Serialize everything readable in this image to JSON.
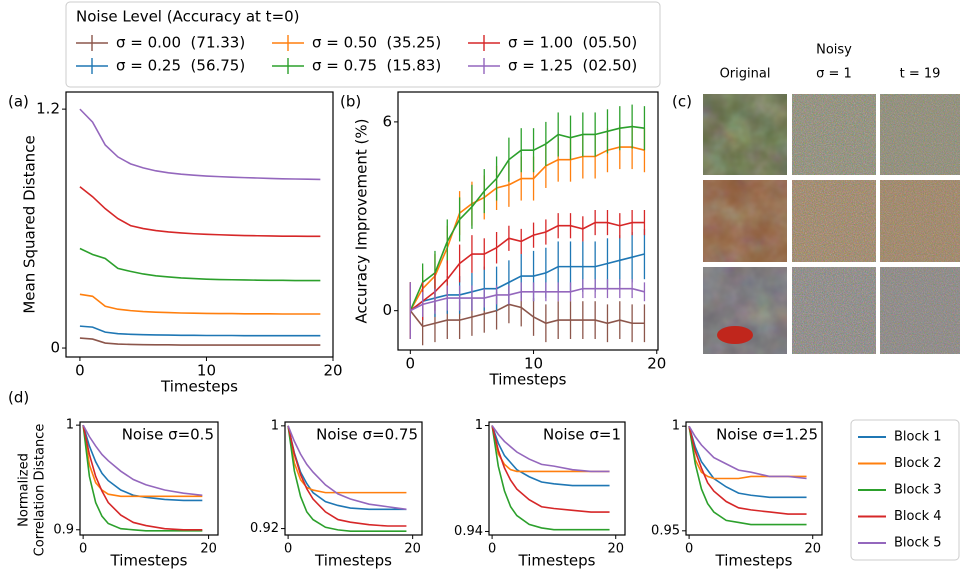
{
  "chart_data": [
    {
      "type": "line",
      "panel_label": "(a)",
      "ylabel": "Mean Squared Distance",
      "xlabel": "Timesteps",
      "legend_title": "Noise Level (Accuracy at t=0)",
      "x": [
        0,
        1,
        2,
        3,
        4,
        5,
        6,
        7,
        8,
        9,
        10,
        11,
        12,
        13,
        14,
        15,
        16,
        17,
        18,
        19
      ],
      "xlim": [
        -1.1,
        20
      ],
      "ylim": [
        -0.045,
        1.286
      ],
      "xticks": [
        0,
        10,
        20
      ],
      "yticks": [
        0,
        1.2
      ],
      "series": [
        {
          "name": "σ = 0.00  (71.33)",
          "color": "#8c564b",
          "values": [
            0.05,
            0.045,
            0.025,
            0.02,
            0.018,
            0.017,
            0.016,
            0.016,
            0.015,
            0.015,
            0.015,
            0.015,
            0.015,
            0.015,
            0.015,
            0.015,
            0.015,
            0.015,
            0.015,
            0.015
          ]
        },
        {
          "name": "σ = 0.25  (56.75)",
          "color": "#1f77b4",
          "values": [
            0.11,
            0.105,
            0.08,
            0.072,
            0.069,
            0.067,
            0.066,
            0.065,
            0.064,
            0.064,
            0.063,
            0.063,
            0.063,
            0.062,
            0.062,
            0.062,
            0.062,
            0.062,
            0.062,
            0.062
          ]
        },
        {
          "name": "σ = 0.50  (35.25)",
          "color": "#ff7f0e",
          "values": [
            0.27,
            0.26,
            0.21,
            0.195,
            0.188,
            0.183,
            0.18,
            0.178,
            0.176,
            0.175,
            0.174,
            0.173,
            0.173,
            0.172,
            0.172,
            0.172,
            0.171,
            0.171,
            0.171,
            0.171
          ]
        },
        {
          "name": "σ = 0.75  (15.83)",
          "color": "#2ca02c",
          "values": [
            0.5,
            0.47,
            0.45,
            0.4,
            0.385,
            0.372,
            0.363,
            0.357,
            0.352,
            0.349,
            0.346,
            0.344,
            0.343,
            0.342,
            0.341,
            0.34,
            0.34,
            0.339,
            0.339,
            0.339
          ]
        },
        {
          "name": "σ = 1.00  (05.50)",
          "color": "#d62728",
          "values": [
            0.81,
            0.76,
            0.7,
            0.65,
            0.615,
            0.6,
            0.59,
            0.583,
            0.578,
            0.574,
            0.571,
            0.569,
            0.567,
            0.565,
            0.564,
            0.563,
            0.562,
            0.562,
            0.561,
            0.561
          ]
        },
        {
          "name": "σ = 1.25  (02.50)",
          "color": "#9467bd",
          "values": [
            1.2,
            1.135,
            1.02,
            0.96,
            0.925,
            0.905,
            0.89,
            0.88,
            0.873,
            0.868,
            0.864,
            0.861,
            0.858,
            0.856,
            0.854,
            0.852,
            0.85,
            0.849,
            0.848,
            0.847
          ]
        }
      ]
    },
    {
      "type": "line",
      "panel_label": "(b)",
      "ylabel": "Accuracy Improvement (%)",
      "xlabel": "Timesteps",
      "x": [
        0,
        1,
        2,
        3,
        4,
        5,
        6,
        7,
        8,
        9,
        10,
        11,
        12,
        13,
        14,
        15,
        16,
        17,
        18,
        19
      ],
      "xlim": [
        -1,
        20.1
      ],
      "ylim": [
        -1.25,
        6.95
      ],
      "xticks": [
        0,
        10,
        20
      ],
      "yticks": [
        0,
        6
      ],
      "series": [
        {
          "color": "#8c564b",
          "values": [
            0,
            -0.5,
            -0.4,
            -0.3,
            -0.3,
            -0.2,
            -0.1,
            0,
            0.2,
            0.1,
            -0.2,
            -0.4,
            -0.3,
            -0.3,
            -0.3,
            -0.3,
            -0.4,
            -0.3,
            -0.4,
            -0.4
          ],
          "errors": [
            0.9,
            0.6,
            0.6,
            0.6,
            0.6,
            0.6,
            0.6,
            0.6,
            0.6,
            0.6,
            0.6,
            0.6,
            0.6,
            0.6,
            0.6,
            0.6,
            0.6,
            0.6,
            0.6,
            0.6
          ]
        },
        {
          "color": "#1f77b4",
          "values": [
            0,
            0.3,
            0.4,
            0.5,
            0.5,
            0.6,
            0.7,
            0.7,
            0.9,
            1.1,
            1.1,
            1.2,
            1.4,
            1.4,
            1.4,
            1.4,
            1.5,
            1.6,
            1.7,
            1.8
          ],
          "errors": [
            0.9,
            0.6,
            0.6,
            0.6,
            0.6,
            0.6,
            0.7,
            0.7,
            0.7,
            0.7,
            0.8,
            0.8,
            0.8,
            0.8,
            0.8,
            0.8,
            0.8,
            0.8,
            0.8,
            0.8
          ]
        },
        {
          "color": "#ff7f0e",
          "values": [
            0,
            0.7,
            1.1,
            2.0,
            3.1,
            3.4,
            3.6,
            3.9,
            4.0,
            4.2,
            4.2,
            4.6,
            4.8,
            4.8,
            4.9,
            4.9,
            5.1,
            5.2,
            5.2,
            5.1
          ],
          "errors": [
            0.9,
            0.6,
            0.7,
            0.7,
            0.7,
            0.7,
            0.7,
            0.7,
            0.7,
            0.7,
            0.7,
            0.7,
            0.7,
            0.7,
            0.7,
            0.7,
            0.7,
            0.7,
            0.7,
            0.7
          ]
        },
        {
          "color": "#2ca02c",
          "values": [
            0,
            0.9,
            1.2,
            2.2,
            2.9,
            3.3,
            3.8,
            4.2,
            4.8,
            5.1,
            5.1,
            5.3,
            5.6,
            5.5,
            5.6,
            5.6,
            5.7,
            5.8,
            5.85,
            5.8
          ],
          "errors": [
            0.9,
            0.6,
            0.7,
            0.7,
            0.7,
            0.7,
            0.7,
            0.7,
            0.7,
            0.7,
            0.7,
            0.7,
            0.7,
            0.7,
            0.7,
            0.7,
            0.7,
            0.7,
            0.7,
            0.7
          ]
        },
        {
          "color": "#d62728",
          "values": [
            0,
            0.3,
            0.6,
            1.0,
            1.5,
            1.8,
            1.8,
            2.0,
            2.3,
            2.2,
            2.4,
            2.5,
            2.7,
            2.7,
            2.6,
            2.8,
            2.8,
            2.7,
            2.8,
            2.8
          ],
          "errors": [
            0.9,
            0.6,
            0.6,
            0.6,
            0.6,
            0.6,
            0.5,
            0.5,
            0.4,
            0.4,
            0.4,
            0.4,
            0.4,
            0.4,
            0.4,
            0.4,
            0.4,
            0.4,
            0.4,
            0.4
          ]
        },
        {
          "color": "#9467bd",
          "values": [
            0,
            0.2,
            0.3,
            0.4,
            0.4,
            0.4,
            0.4,
            0.5,
            0.5,
            0.6,
            0.6,
            0.6,
            0.6,
            0.6,
            0.7,
            0.7,
            0.7,
            0.7,
            0.7,
            0.6
          ],
          "errors": [
            0.9,
            0.4,
            0.4,
            0.4,
            0.4,
            0.4,
            0.3,
            0.3,
            0.3,
            0.3,
            0.3,
            0.3,
            0.3,
            0.3,
            0.3,
            0.3,
            0.3,
            0.3,
            0.3,
            0.3
          ]
        }
      ]
    },
    {
      "type": "line",
      "title": "Noise σ=0.5",
      "xlabel": "Timesteps",
      "x": [
        0,
        1,
        2,
        3,
        4,
        6,
        8,
        10,
        13,
        16,
        19
      ],
      "xlim": [
        -0.5,
        21.5
      ],
      "ylim": [
        0.895,
        1.003
      ],
      "xticks": [
        0,
        20
      ],
      "yticks": [
        0.9,
        1
      ],
      "series": [
        {
          "name": "Block 1",
          "color": "#1f77b4",
          "values": [
            1,
            0.98,
            0.965,
            0.954,
            0.947,
            0.938,
            0.933,
            0.931,
            0.929,
            0.928,
            0.928
          ]
        },
        {
          "name": "Block 2",
          "color": "#ff7f0e",
          "values": [
            1,
            0.962,
            0.945,
            0.938,
            0.934,
            0.932,
            0.932,
            0.932,
            0.932,
            0.932,
            0.932
          ]
        },
        {
          "name": "Block 3",
          "color": "#2ca02c",
          "values": [
            1,
            0.951,
            0.926,
            0.913,
            0.906,
            0.901,
            0.9,
            0.899,
            0.899,
            0.899,
            0.899
          ]
        },
        {
          "name": "Block 4",
          "color": "#d62728",
          "values": [
            1,
            0.972,
            0.951,
            0.937,
            0.926,
            0.914,
            0.907,
            0.904,
            0.901,
            0.9,
            0.9
          ]
        },
        {
          "name": "Block 5",
          "color": "#9467bd",
          "values": [
            1,
            0.989,
            0.98,
            0.972,
            0.966,
            0.956,
            0.948,
            0.943,
            0.938,
            0.935,
            0.933
          ]
        }
      ]
    },
    {
      "type": "line",
      "title": "Noise σ=0.75",
      "xlabel": "Timesteps",
      "x": [
        0,
        1,
        2,
        3,
        4,
        6,
        8,
        10,
        13,
        16,
        19
      ],
      "xlim": [
        -0.5,
        21.5
      ],
      "ylim": [
        0.915,
        1.003
      ],
      "xticks": [
        0,
        20
      ],
      "yticks": [
        0.92,
        1
      ],
      "series": [
        {
          "color": "#1f77b4",
          "values": [
            1,
            0.979,
            0.964,
            0.955,
            0.948,
            0.941,
            0.938,
            0.936,
            0.935,
            0.935,
            0.935
          ]
        },
        {
          "color": "#ff7f0e",
          "values": [
            1,
            0.971,
            0.958,
            0.952,
            0.95,
            0.948,
            0.948,
            0.948,
            0.948,
            0.948,
            0.948
          ]
        },
        {
          "color": "#2ca02c",
          "values": [
            1,
            0.965,
            0.945,
            0.933,
            0.927,
            0.921,
            0.919,
            0.918,
            0.918,
            0.918,
            0.918
          ]
        },
        {
          "color": "#d62728",
          "values": [
            1,
            0.978,
            0.962,
            0.951,
            0.943,
            0.933,
            0.927,
            0.925,
            0.923,
            0.922,
            0.922
          ]
        },
        {
          "color": "#9467bd",
          "values": [
            1,
            0.988,
            0.978,
            0.97,
            0.964,
            0.954,
            0.947,
            0.943,
            0.939,
            0.937,
            0.935
          ]
        }
      ]
    },
    {
      "type": "line",
      "title": "Noise σ=1",
      "xlabel": "Timesteps",
      "x": [
        0,
        1,
        2,
        3,
        4,
        6,
        8,
        10,
        13,
        16,
        19
      ],
      "xlim": [
        -0.5,
        21.5
      ],
      "ylim": [
        0.938,
        1.002
      ],
      "xticks": [
        0,
        20
      ],
      "yticks": [
        0.94,
        1
      ],
      "series": [
        {
          "color": "#1f77b4",
          "values": [
            1,
            0.99,
            0.983,
            0.979,
            0.975,
            0.971,
            0.968,
            0.967,
            0.966,
            0.966,
            0.966
          ]
        },
        {
          "color": "#ff7f0e",
          "values": [
            1,
            0.984,
            0.978,
            0.975,
            0.974,
            0.974,
            0.974,
            0.974,
            0.974,
            0.974,
            0.974
          ]
        },
        {
          "color": "#2ca02c",
          "values": [
            1,
            0.977,
            0.963,
            0.954,
            0.949,
            0.944,
            0.942,
            0.941,
            0.941,
            0.941,
            0.941
          ]
        },
        {
          "color": "#d62728",
          "values": [
            1,
            0.986,
            0.976,
            0.969,
            0.964,
            0.958,
            0.954,
            0.953,
            0.952,
            0.951,
            0.951
          ]
        },
        {
          "color": "#9467bd",
          "values": [
            1,
            0.995,
            0.991,
            0.988,
            0.985,
            0.981,
            0.978,
            0.977,
            0.975,
            0.974,
            0.974
          ]
        }
      ]
    },
    {
      "type": "line",
      "title": "Noise σ=1.25",
      "xlabel": "Timesteps",
      "x": [
        0,
        1,
        2,
        3,
        4,
        6,
        8,
        10,
        13,
        16,
        19
      ],
      "xlim": [
        -0.5,
        21.5
      ],
      "ylim": [
        0.948,
        1.002
      ],
      "xticks": [
        0,
        20
      ],
      "yticks": [
        0.95,
        1
      ],
      "series": [
        {
          "color": "#1f77b4",
          "values": [
            1,
            0.99,
            0.983,
            0.979,
            0.975,
            0.971,
            0.968,
            0.967,
            0.966,
            0.966,
            0.966
          ]
        },
        {
          "color": "#ff7f0e",
          "values": [
            1,
            0.984,
            0.978,
            0.976,
            0.975,
            0.975,
            0.975,
            0.976,
            0.976,
            0.976,
            0.976
          ]
        },
        {
          "color": "#2ca02c",
          "values": [
            1,
            0.982,
            0.97,
            0.963,
            0.959,
            0.955,
            0.954,
            0.953,
            0.953,
            0.953,
            0.953
          ]
        },
        {
          "color": "#d62728",
          "values": [
            1,
            0.988,
            0.98,
            0.973,
            0.969,
            0.964,
            0.961,
            0.96,
            0.959,
            0.958,
            0.958
          ]
        },
        {
          "color": "#9467bd",
          "values": [
            1,
            0.995,
            0.991,
            0.988,
            0.985,
            0.982,
            0.979,
            0.978,
            0.976,
            0.976,
            0.975
          ]
        }
      ]
    }
  ],
  "panel_c": {
    "panel_label": "(c)",
    "columns": [
      "Original",
      [
        "Noisy",
        "σ = 1"
      ],
      "t = 19"
    ]
  },
  "panel_d": {
    "panel_label": "(d)",
    "ylabel": [
      "Normalized",
      "Correlation Distance"
    ]
  }
}
